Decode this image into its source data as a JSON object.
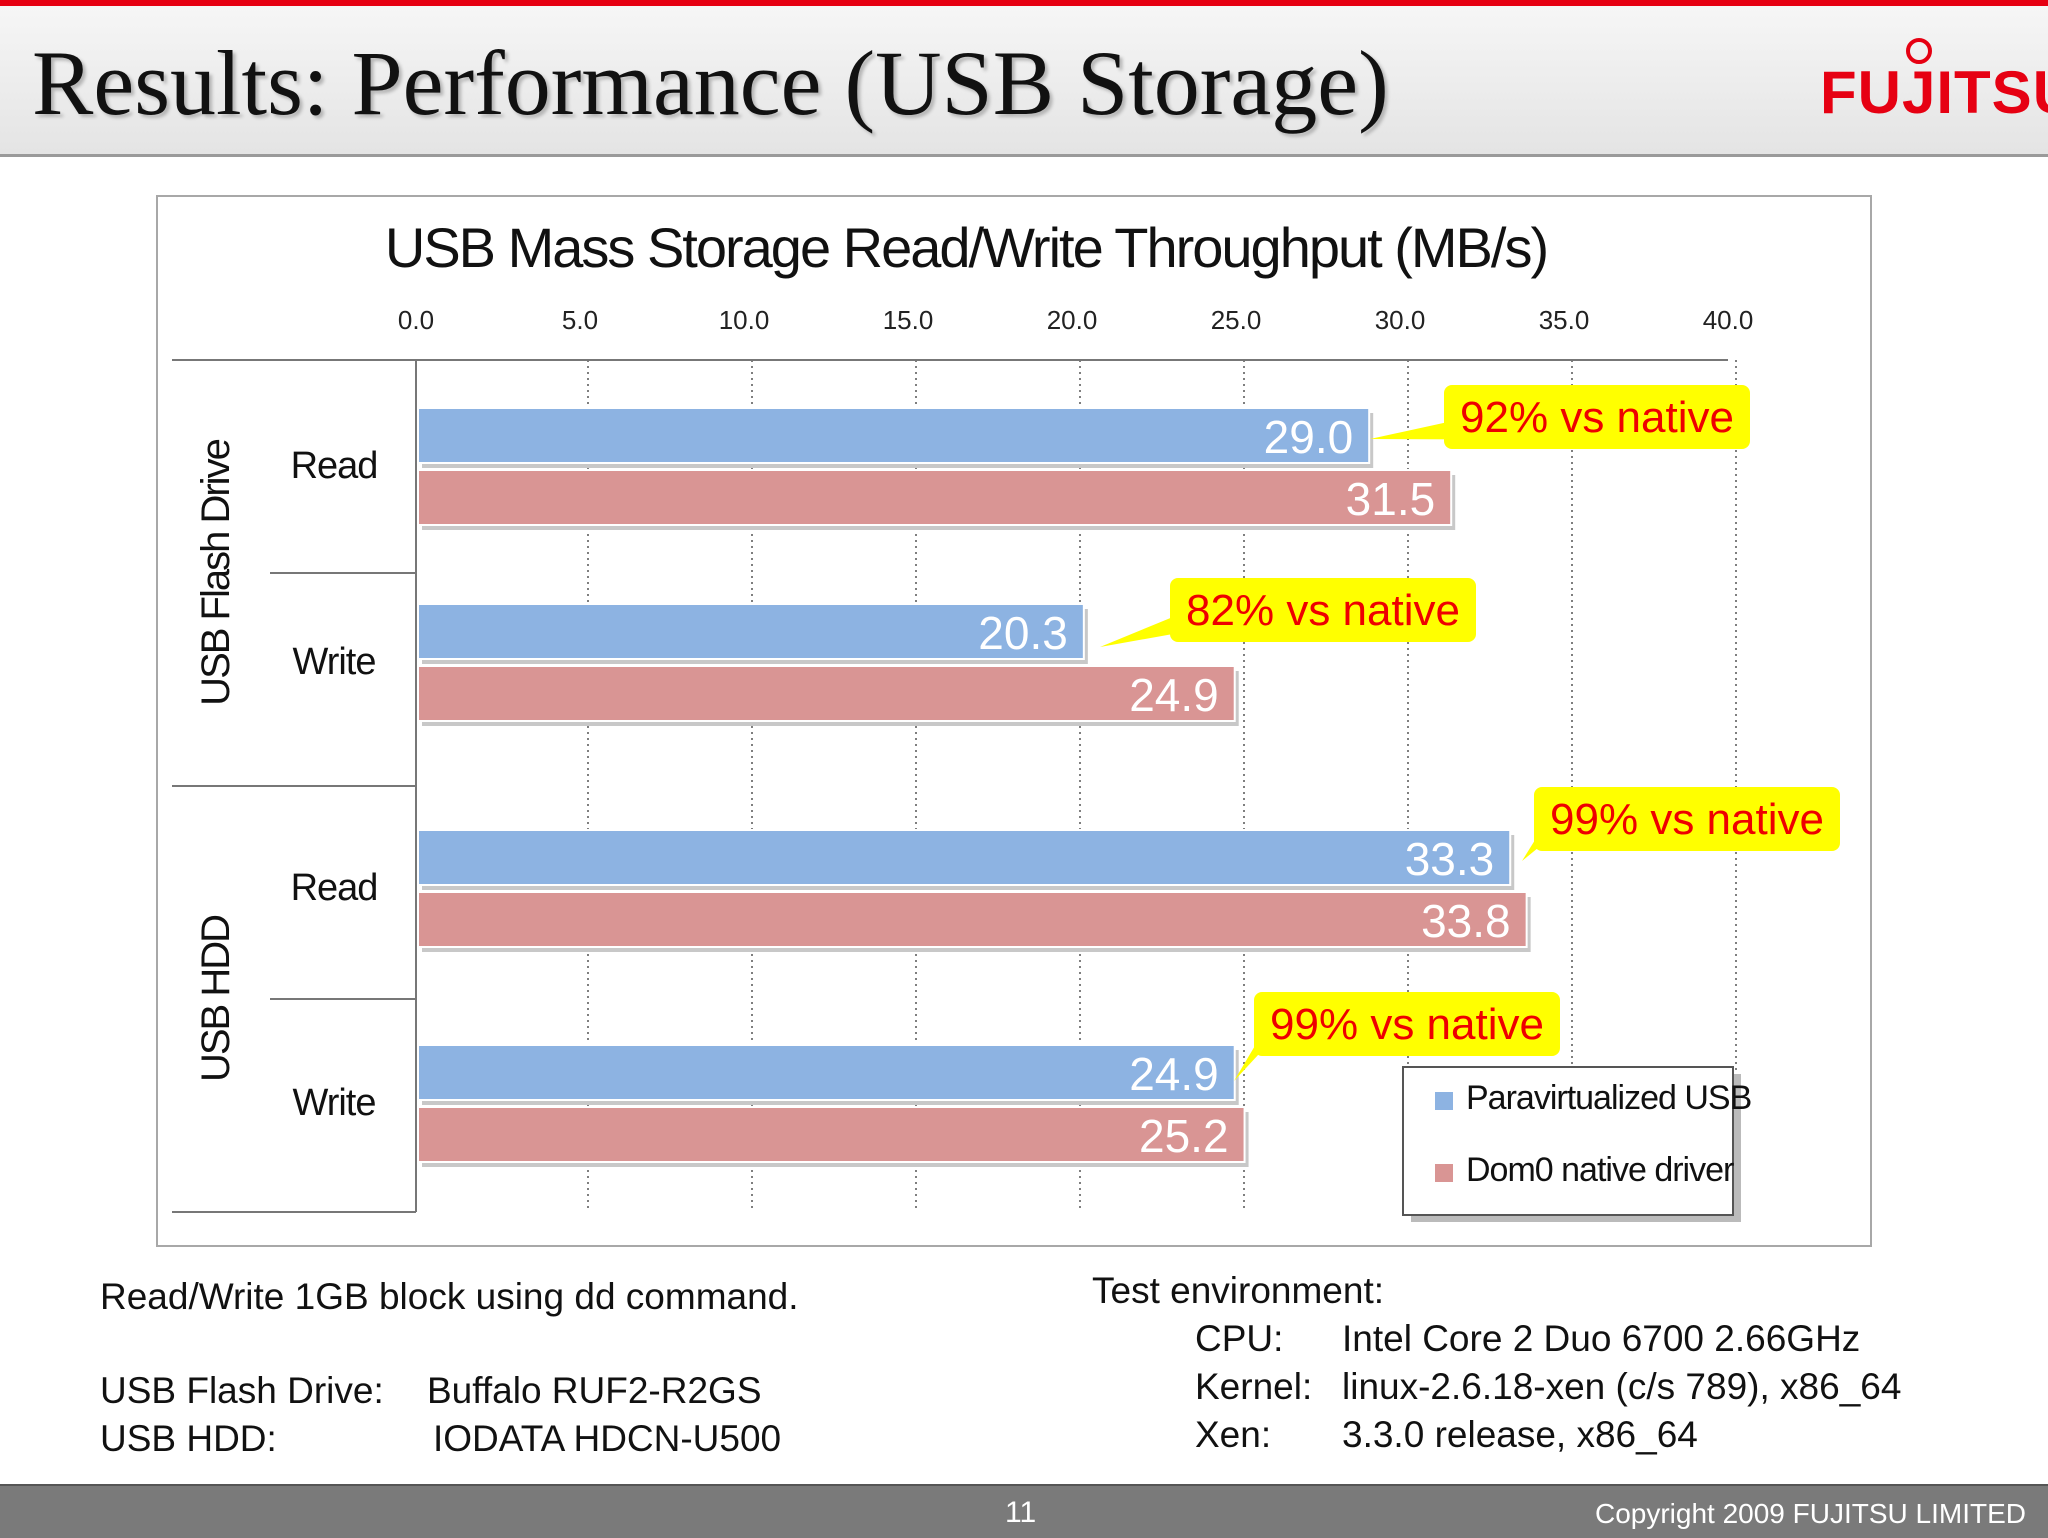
{
  "slide": {
    "title": "Results: Performance (USB Storage)",
    "logo_text": "FUJITSU"
  },
  "chart_data": {
    "type": "bar",
    "orientation": "horizontal",
    "title": "USB Mass Storage Read/Write Throughput (MB/s)",
    "xlim": [
      0,
      40
    ],
    "xticks": [
      "0.0",
      "5.0",
      "10.0",
      "15.0",
      "20.0",
      "25.0",
      "30.0",
      "35.0",
      "40.0"
    ],
    "grid": "vertical dotted",
    "legend_position": "bottom-right",
    "groups": [
      {
        "name": "USB Flash Drive",
        "rows": [
          "Read",
          "Write"
        ]
      },
      {
        "name": "USB HDD",
        "rows": [
          "Read",
          "Write"
        ]
      }
    ],
    "categories": [
      "USB Flash Drive Read",
      "USB Flash Drive Write",
      "USB HDD Read",
      "USB HDD Write"
    ],
    "row_labels": [
      "Read",
      "Write",
      "Read",
      "Write"
    ],
    "series": [
      {
        "name": "Paravirtualized USB",
        "color": "#8db3e2",
        "values": [
          29.0,
          20.3,
          33.3,
          24.9
        ],
        "labels": [
          "29.0",
          "20.3",
          "33.3",
          "24.9"
        ]
      },
      {
        "name": "Dom0 native driver",
        "color": "#d99594",
        "values": [
          31.5,
          24.9,
          33.8,
          25.2
        ],
        "labels": [
          "31.5",
          "24.9",
          "33.8",
          "25.2"
        ]
      }
    ],
    "annotations": [
      "92% vs native",
      "82% vs native",
      "99% vs native",
      "99% vs native"
    ]
  },
  "notes": {
    "method": "Read/Write 1GB block using dd command.",
    "flash_label": "USB Flash Drive:",
    "flash_value": "Buffalo RUF2-R2GS",
    "hdd_label": "USB HDD:",
    "hdd_value": "IODATA HDCN-U500",
    "env_title": "Test environment:",
    "env": [
      {
        "label": "CPU:",
        "value": "Intel Core 2 Duo 6700 2.66GHz"
      },
      {
        "label": "Kernel:",
        "value": "linux-2.6.18-xen (c/s 789), x86_64"
      },
      {
        "label": "Xen:",
        "value": "3.3.0 release, x86_64"
      }
    ]
  },
  "footer": {
    "page": "11",
    "copyright": "Copyright 2009 FUJITSU LIMITED"
  },
  "colors": {
    "accent_red": "#e60012",
    "callout_fill": "#ffff00",
    "callout_text": "#ee0000"
  }
}
